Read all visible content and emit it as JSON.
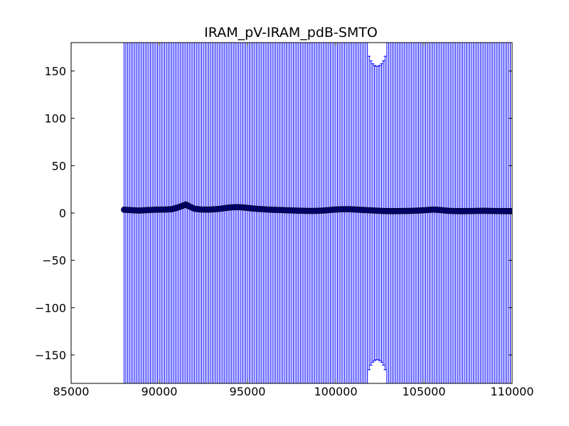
{
  "chart_data": {
    "type": "scatter",
    "title": "IRAM_pV-IRAM_pdB-SMTO",
    "xlabel": "",
    "ylabel": "",
    "xlim": [
      85000,
      110000
    ],
    "ylim": [
      -180,
      180
    ],
    "x_ticks": [
      85000,
      90000,
      95000,
      100000,
      105000,
      110000
    ],
    "y_ticks": [
      150,
      100,
      50,
      0,
      -50,
      -100,
      -150
    ],
    "x_tick_labels": [
      "85000",
      "90000",
      "95000",
      "100000",
      "105000",
      "110000"
    ],
    "y_tick_labels": [
      "150",
      "100",
      "50",
      "0",
      "−50",
      "−100",
      "−150"
    ],
    "grid": false,
    "colors": {
      "series": "#0000ff",
      "marker_fill": "#00007f",
      "frame": "#000000"
    },
    "error_bars": {
      "description_values": "vertical error bars spanning full y range at every x sample",
      "x_start": 88000,
      "x_end": 110000,
      "x_step": 100,
      "y_low": -180,
      "y_high": 180,
      "gap_x_range": [
        101800,
        102900
      ],
      "gap_center": 102350,
      "gap_half_width": 550,
      "gap_depth": 25
    },
    "series": [
      {
        "points": [
          [
            88000,
            3.5
          ],
          [
            88300,
            3.2
          ],
          [
            88600,
            2.8
          ],
          [
            88900,
            2.6
          ],
          [
            89200,
            3.0
          ],
          [
            89500,
            3.3
          ],
          [
            89800,
            3.5
          ],
          [
            90100,
            3.6
          ],
          [
            90400,
            3.7
          ],
          [
            90700,
            4.0
          ],
          [
            91000,
            5.5
          ],
          [
            91300,
            7.5
          ],
          [
            91500,
            9.0
          ],
          [
            91700,
            7.0
          ],
          [
            92000,
            4.5
          ],
          [
            92300,
            3.8
          ],
          [
            92600,
            3.6
          ],
          [
            92900,
            3.7
          ],
          [
            93200,
            4.0
          ],
          [
            93500,
            4.6
          ],
          [
            93800,
            5.4
          ],
          [
            94100,
            6.0
          ],
          [
            94400,
            6.2
          ],
          [
            94700,
            6.0
          ],
          [
            95000,
            5.4
          ],
          [
            95300,
            4.8
          ],
          [
            95600,
            4.3
          ],
          [
            95900,
            4.0
          ],
          [
            96200,
            3.6
          ],
          [
            96500,
            3.4
          ],
          [
            96800,
            3.2
          ],
          [
            97100,
            3.0
          ],
          [
            97400,
            2.8
          ],
          [
            97700,
            2.6
          ],
          [
            98000,
            2.4
          ],
          [
            98300,
            2.3
          ],
          [
            98600,
            2.2
          ],
          [
            98900,
            2.3
          ],
          [
            99200,
            2.5
          ],
          [
            99500,
            2.9
          ],
          [
            99800,
            3.4
          ],
          [
            100100,
            3.8
          ],
          [
            100400,
            4.0
          ],
          [
            100700,
            4.0
          ],
          [
            101000,
            3.8
          ],
          [
            101300,
            3.5
          ],
          [
            101600,
            3.2
          ],
          [
            101900,
            2.9
          ],
          [
            102200,
            2.6
          ],
          [
            102500,
            2.3
          ],
          [
            102800,
            2.1
          ],
          [
            103100,
            2.0
          ],
          [
            103400,
            2.0
          ],
          [
            103700,
            2.1
          ],
          [
            104000,
            2.2
          ],
          [
            104300,
            2.3
          ],
          [
            104600,
            2.5
          ],
          [
            104900,
            2.8
          ],
          [
            105200,
            3.2
          ],
          [
            105500,
            3.6
          ],
          [
            105800,
            3.4
          ],
          [
            106100,
            2.8
          ],
          [
            106400,
            2.3
          ],
          [
            106700,
            2.1
          ],
          [
            107000,
            2.0
          ],
          [
            107300,
            2.0
          ],
          [
            107600,
            2.1
          ],
          [
            107900,
            2.2
          ],
          [
            108200,
            2.3
          ],
          [
            108500,
            2.3
          ],
          [
            108800,
            2.2
          ],
          [
            109100,
            2.1
          ],
          [
            109400,
            2.0
          ],
          [
            109700,
            2.0
          ],
          [
            110000,
            2.0
          ]
        ]
      }
    ]
  }
}
